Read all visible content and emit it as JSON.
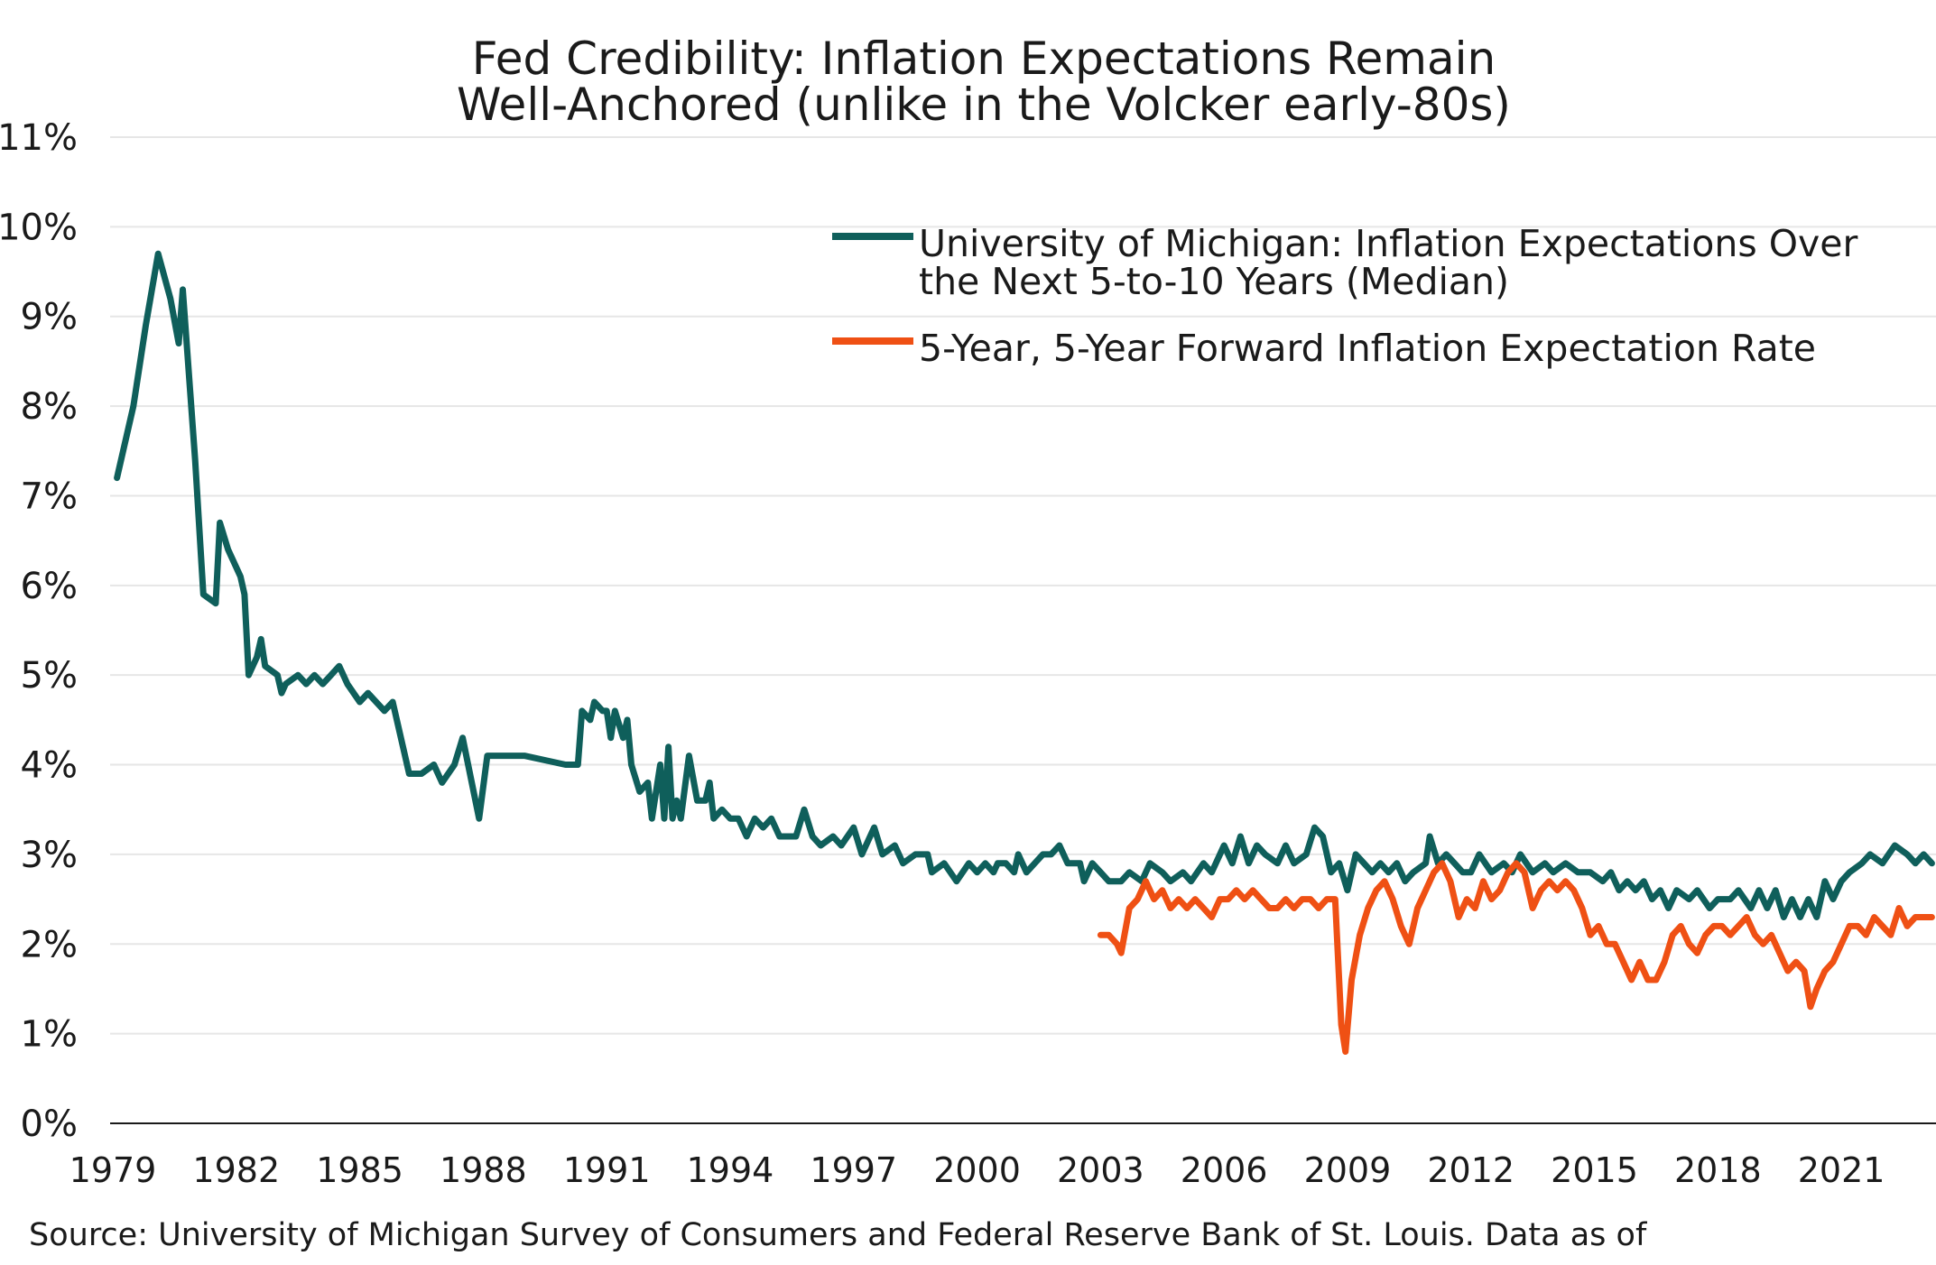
{
  "chart_data": {
    "type": "line",
    "title": [
      "Fed Credibility: Inflation Expectations Remain",
      "Well-Anchored (unlike in the Volcker early-80s)"
    ],
    "source": "Source: University of Michigan Survey of Consumers and Federal Reserve Bank of St. Louis. Data as of",
    "ylim": [
      0,
      11
    ],
    "yticks": [
      "0%",
      "1%",
      "2%",
      "3%",
      "4%",
      "5%",
      "6%",
      "7%",
      "8%",
      "9%",
      "10%",
      "11%"
    ],
    "xlim": [
      1979,
      2023.3
    ],
    "xticks": [
      "1979",
      "1982",
      "1985",
      "1988",
      "1991",
      "1994",
      "1997",
      "2000",
      "2003",
      "2006",
      "2009",
      "2012",
      "2015",
      "2018",
      "2021"
    ],
    "grid": true,
    "legend_position": "top-right",
    "series": [
      {
        "name": "University of Michigan: Inflation Expectations Over the Next 5-to-10 Years (Median)",
        "legend_lines": [
          "University of Michigan: Inflation Expectations Over",
          "the Next 5-to-10 Years (Median)"
        ],
        "color": "#0f5f5b",
        "points": [
          [
            1979.1,
            7.2
          ],
          [
            1979.5,
            8.0
          ],
          [
            1979.8,
            8.9
          ],
          [
            1980.1,
            9.7
          ],
          [
            1980.4,
            9.2
          ],
          [
            1980.6,
            8.7
          ],
          [
            1980.7,
            9.3
          ],
          [
            1981.0,
            7.4
          ],
          [
            1981.2,
            5.9
          ],
          [
            1981.5,
            5.8
          ],
          [
            1981.6,
            6.7
          ],
          [
            1981.8,
            6.4
          ],
          [
            1982.1,
            6.1
          ],
          [
            1982.2,
            5.9
          ],
          [
            1982.3,
            5.0
          ],
          [
            1982.5,
            5.2
          ],
          [
            1982.6,
            5.4
          ],
          [
            1982.7,
            5.1
          ],
          [
            1983.0,
            5.0
          ],
          [
            1983.1,
            4.8
          ],
          [
            1983.2,
            4.9
          ],
          [
            1983.5,
            5.0
          ],
          [
            1983.7,
            4.9
          ],
          [
            1983.9,
            5.0
          ],
          [
            1984.1,
            4.9
          ],
          [
            1984.3,
            5.0
          ],
          [
            1984.5,
            5.1
          ],
          [
            1984.7,
            4.9
          ],
          [
            1985.0,
            4.7
          ],
          [
            1985.2,
            4.8
          ],
          [
            1985.4,
            4.7
          ],
          [
            1985.6,
            4.6
          ],
          [
            1985.8,
            4.7
          ],
          [
            1986.2,
            3.9
          ],
          [
            1986.5,
            3.9
          ],
          [
            1986.8,
            4.0
          ],
          [
            1987.0,
            3.8
          ],
          [
            1987.3,
            4.0
          ],
          [
            1987.5,
            4.3
          ],
          [
            1987.9,
            3.4
          ],
          [
            1988.1,
            4.1
          ],
          [
            1989.0,
            4.1
          ],
          [
            1990.0,
            4.0
          ],
          [
            1990.3,
            4.0
          ],
          [
            1990.4,
            4.6
          ],
          [
            1990.6,
            4.5
          ],
          [
            1990.7,
            4.7
          ],
          [
            1990.9,
            4.6
          ],
          [
            1991.0,
            4.6
          ],
          [
            1991.1,
            4.3
          ],
          [
            1991.2,
            4.6
          ],
          [
            1991.4,
            4.3
          ],
          [
            1991.5,
            4.5
          ],
          [
            1991.6,
            4.0
          ],
          [
            1991.8,
            3.7
          ],
          [
            1992.0,
            3.8
          ],
          [
            1992.1,
            3.4
          ],
          [
            1992.3,
            4.0
          ],
          [
            1992.4,
            3.4
          ],
          [
            1992.5,
            4.2
          ],
          [
            1992.6,
            3.4
          ],
          [
            1992.7,
            3.6
          ],
          [
            1992.8,
            3.4
          ],
          [
            1993.0,
            4.1
          ],
          [
            1993.2,
            3.6
          ],
          [
            1993.4,
            3.6
          ],
          [
            1993.5,
            3.8
          ],
          [
            1993.6,
            3.4
          ],
          [
            1993.8,
            3.5
          ],
          [
            1994.0,
            3.4
          ],
          [
            1994.2,
            3.4
          ],
          [
            1994.4,
            3.2
          ],
          [
            1994.6,
            3.4
          ],
          [
            1994.8,
            3.3
          ],
          [
            1995.0,
            3.4
          ],
          [
            1995.2,
            3.2
          ],
          [
            1995.6,
            3.2
          ],
          [
            1995.8,
            3.5
          ],
          [
            1996.0,
            3.2
          ],
          [
            1996.2,
            3.1
          ],
          [
            1996.5,
            3.2
          ],
          [
            1996.7,
            3.1
          ],
          [
            1997.0,
            3.3
          ],
          [
            1997.2,
            3.0
          ],
          [
            1997.5,
            3.3
          ],
          [
            1997.7,
            3.0
          ],
          [
            1998.0,
            3.1
          ],
          [
            1998.2,
            2.9
          ],
          [
            1998.5,
            3.0
          ],
          [
            1998.8,
            3.0
          ],
          [
            1998.9,
            2.8
          ],
          [
            1999.2,
            2.9
          ],
          [
            1999.5,
            2.7
          ],
          [
            1999.8,
            2.9
          ],
          [
            2000.0,
            2.8
          ],
          [
            2000.2,
            2.9
          ],
          [
            2000.4,
            2.8
          ],
          [
            2000.5,
            2.9
          ],
          [
            2000.7,
            2.9
          ],
          [
            2000.9,
            2.8
          ],
          [
            2001.0,
            3.0
          ],
          [
            2001.2,
            2.8
          ],
          [
            2001.4,
            2.9
          ],
          [
            2001.6,
            3.0
          ],
          [
            2001.8,
            3.0
          ],
          [
            2002.0,
            3.1
          ],
          [
            2002.2,
            2.9
          ],
          [
            2002.5,
            2.9
          ],
          [
            2002.6,
            2.7
          ],
          [
            2002.8,
            2.9
          ],
          [
            2003.0,
            2.8
          ],
          [
            2003.2,
            2.7
          ],
          [
            2003.5,
            2.7
          ],
          [
            2003.7,
            2.8
          ],
          [
            2004.0,
            2.7
          ],
          [
            2004.2,
            2.9
          ],
          [
            2004.5,
            2.8
          ],
          [
            2004.7,
            2.7
          ],
          [
            2005.0,
            2.8
          ],
          [
            2005.2,
            2.7
          ],
          [
            2005.5,
            2.9
          ],
          [
            2005.7,
            2.8
          ],
          [
            2006.0,
            3.1
          ],
          [
            2006.2,
            2.9
          ],
          [
            2006.4,
            3.2
          ],
          [
            2006.6,
            2.9
          ],
          [
            2006.8,
            3.1
          ],
          [
            2007.0,
            3.0
          ],
          [
            2007.3,
            2.9
          ],
          [
            2007.5,
            3.1
          ],
          [
            2007.7,
            2.9
          ],
          [
            2008.0,
            3.0
          ],
          [
            2008.2,
            3.3
          ],
          [
            2008.4,
            3.2
          ],
          [
            2008.6,
            2.8
          ],
          [
            2008.8,
            2.9
          ],
          [
            2009.0,
            2.6
          ],
          [
            2009.2,
            3.0
          ],
          [
            2009.4,
            2.9
          ],
          [
            2009.6,
            2.8
          ],
          [
            2009.8,
            2.9
          ],
          [
            2010.0,
            2.8
          ],
          [
            2010.2,
            2.9
          ],
          [
            2010.4,
            2.7
          ],
          [
            2010.6,
            2.8
          ],
          [
            2010.9,
            2.9
          ],
          [
            2011.0,
            3.2
          ],
          [
            2011.2,
            2.9
          ],
          [
            2011.4,
            3.0
          ],
          [
            2011.6,
            2.9
          ],
          [
            2011.8,
            2.8
          ],
          [
            2012.0,
            2.8
          ],
          [
            2012.2,
            3.0
          ],
          [
            2012.5,
            2.8
          ],
          [
            2012.8,
            2.9
          ],
          [
            2013.0,
            2.8
          ],
          [
            2013.2,
            3.0
          ],
          [
            2013.5,
            2.8
          ],
          [
            2013.8,
            2.9
          ],
          [
            2014.0,
            2.8
          ],
          [
            2014.3,
            2.9
          ],
          [
            2014.6,
            2.8
          ],
          [
            2014.9,
            2.8
          ],
          [
            2015.2,
            2.7
          ],
          [
            2015.4,
            2.8
          ],
          [
            2015.6,
            2.6
          ],
          [
            2015.8,
            2.7
          ],
          [
            2016.0,
            2.6
          ],
          [
            2016.2,
            2.7
          ],
          [
            2016.4,
            2.5
          ],
          [
            2016.6,
            2.6
          ],
          [
            2016.8,
            2.4
          ],
          [
            2017.0,
            2.6
          ],
          [
            2017.3,
            2.5
          ],
          [
            2017.5,
            2.6
          ],
          [
            2017.8,
            2.4
          ],
          [
            2018.0,
            2.5
          ],
          [
            2018.3,
            2.5
          ],
          [
            2018.5,
            2.6
          ],
          [
            2018.8,
            2.4
          ],
          [
            2019.0,
            2.6
          ],
          [
            2019.2,
            2.4
          ],
          [
            2019.4,
            2.6
          ],
          [
            2019.6,
            2.3
          ],
          [
            2019.8,
            2.5
          ],
          [
            2020.0,
            2.3
          ],
          [
            2020.2,
            2.5
          ],
          [
            2020.4,
            2.3
          ],
          [
            2020.6,
            2.7
          ],
          [
            2020.8,
            2.5
          ],
          [
            2021.0,
            2.7
          ],
          [
            2021.2,
            2.8
          ],
          [
            2021.5,
            2.9
          ],
          [
            2021.7,
            3.0
          ],
          [
            2022.0,
            2.9
          ],
          [
            2022.3,
            3.1
          ],
          [
            2022.6,
            3.0
          ],
          [
            2022.8,
            2.9
          ],
          [
            2023.0,
            3.0
          ],
          [
            2023.2,
            2.9
          ]
        ]
      },
      {
        "name": "5-Year, 5-Year Forward Inflation Expectation Rate",
        "legend_lines": [
          "5-Year, 5-Year Forward Inflation Expectation Rate"
        ],
        "color": "#ef5014",
        "points": [
          [
            2003.0,
            2.1
          ],
          [
            2003.2,
            2.1
          ],
          [
            2003.4,
            2.0
          ],
          [
            2003.5,
            1.9
          ],
          [
            2003.7,
            2.4
          ],
          [
            2003.9,
            2.5
          ],
          [
            2004.1,
            2.7
          ],
          [
            2004.3,
            2.5
          ],
          [
            2004.5,
            2.6
          ],
          [
            2004.7,
            2.4
          ],
          [
            2004.9,
            2.5
          ],
          [
            2005.1,
            2.4
          ],
          [
            2005.3,
            2.5
          ],
          [
            2005.5,
            2.4
          ],
          [
            2005.7,
            2.3
          ],
          [
            2005.9,
            2.5
          ],
          [
            2006.1,
            2.5
          ],
          [
            2006.3,
            2.6
          ],
          [
            2006.5,
            2.5
          ],
          [
            2006.7,
            2.6
          ],
          [
            2006.9,
            2.5
          ],
          [
            2007.1,
            2.4
          ],
          [
            2007.3,
            2.4
          ],
          [
            2007.5,
            2.5
          ],
          [
            2007.7,
            2.4
          ],
          [
            2007.9,
            2.5
          ],
          [
            2008.1,
            2.5
          ],
          [
            2008.3,
            2.4
          ],
          [
            2008.5,
            2.5
          ],
          [
            2008.7,
            2.5
          ],
          [
            2008.85,
            1.1
          ],
          [
            2008.95,
            0.8
          ],
          [
            2009.1,
            1.6
          ],
          [
            2009.3,
            2.1
          ],
          [
            2009.5,
            2.4
          ],
          [
            2009.7,
            2.6
          ],
          [
            2009.9,
            2.7
          ],
          [
            2010.1,
            2.5
          ],
          [
            2010.3,
            2.2
          ],
          [
            2010.5,
            2.0
          ],
          [
            2010.7,
            2.4
          ],
          [
            2010.9,
            2.6
          ],
          [
            2011.1,
            2.8
          ],
          [
            2011.3,
            2.9
          ],
          [
            2011.5,
            2.7
          ],
          [
            2011.7,
            2.3
          ],
          [
            2011.9,
            2.5
          ],
          [
            2012.1,
            2.4
          ],
          [
            2012.3,
            2.7
          ],
          [
            2012.5,
            2.5
          ],
          [
            2012.7,
            2.6
          ],
          [
            2012.9,
            2.8
          ],
          [
            2013.1,
            2.9
          ],
          [
            2013.3,
            2.8
          ],
          [
            2013.5,
            2.4
          ],
          [
            2013.7,
            2.6
          ],
          [
            2013.9,
            2.7
          ],
          [
            2014.1,
            2.6
          ],
          [
            2014.3,
            2.7
          ],
          [
            2014.5,
            2.6
          ],
          [
            2014.7,
            2.4
          ],
          [
            2014.9,
            2.1
          ],
          [
            2015.1,
            2.2
          ],
          [
            2015.3,
            2.0
          ],
          [
            2015.5,
            2.0
          ],
          [
            2015.7,
            1.8
          ],
          [
            2015.9,
            1.6
          ],
          [
            2016.1,
            1.8
          ],
          [
            2016.3,
            1.6
          ],
          [
            2016.5,
            1.6
          ],
          [
            2016.7,
            1.8
          ],
          [
            2016.9,
            2.1
          ],
          [
            2017.1,
            2.2
          ],
          [
            2017.3,
            2.0
          ],
          [
            2017.5,
            1.9
          ],
          [
            2017.7,
            2.1
          ],
          [
            2017.9,
            2.2
          ],
          [
            2018.1,
            2.2
          ],
          [
            2018.3,
            2.1
          ],
          [
            2018.5,
            2.2
          ],
          [
            2018.7,
            2.3
          ],
          [
            2018.9,
            2.1
          ],
          [
            2019.1,
            2.0
          ],
          [
            2019.3,
            2.1
          ],
          [
            2019.5,
            1.9
          ],
          [
            2019.7,
            1.7
          ],
          [
            2019.9,
            1.8
          ],
          [
            2020.1,
            1.7
          ],
          [
            2020.25,
            1.3
          ],
          [
            2020.4,
            1.5
          ],
          [
            2020.6,
            1.7
          ],
          [
            2020.8,
            1.8
          ],
          [
            2021.0,
            2.0
          ],
          [
            2021.2,
            2.2
          ],
          [
            2021.4,
            2.2
          ],
          [
            2021.6,
            2.1
          ],
          [
            2021.8,
            2.3
          ],
          [
            2022.0,
            2.2
          ],
          [
            2022.2,
            2.1
          ],
          [
            2022.4,
            2.4
          ],
          [
            2022.6,
            2.2
          ],
          [
            2022.8,
            2.3
          ],
          [
            2023.0,
            2.3
          ],
          [
            2023.2,
            2.3
          ]
        ]
      }
    ]
  }
}
